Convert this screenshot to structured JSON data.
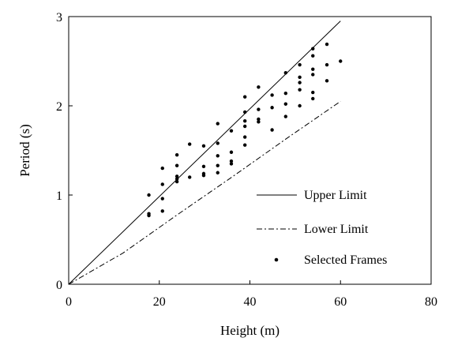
{
  "chart_data": {
    "type": "scatter",
    "xlabel": "Height (m)",
    "ylabel": "Period (s)",
    "xlim": [
      0,
      80
    ],
    "ylim": [
      0,
      3
    ],
    "x_ticks": [
      0,
      20,
      40,
      60,
      80
    ],
    "y_ticks": [
      0,
      1,
      2,
      3
    ],
    "grid": false,
    "legend_position": "bottom-right",
    "series": [
      {
        "name": "Upper Limit",
        "kind": "line",
        "style": "solid",
        "points": [
          [
            0,
            0
          ],
          [
            60,
            2.95
          ]
        ]
      },
      {
        "name": "Lower Limit",
        "kind": "line",
        "style": "dash-dot",
        "points": [
          [
            0,
            0
          ],
          [
            12,
            0.35
          ],
          [
            24,
            0.78
          ],
          [
            36,
            1.2
          ],
          [
            48,
            1.63
          ],
          [
            60,
            2.05
          ]
        ]
      },
      {
        "name": "Selected Frames",
        "kind": "scatter",
        "points": [
          [
            17.7,
            1.0
          ],
          [
            17.7,
            0.79
          ],
          [
            17.7,
            0.77
          ],
          [
            20.7,
            1.3
          ],
          [
            20.7,
            1.12
          ],
          [
            20.7,
            0.96
          ],
          [
            20.7,
            0.82
          ],
          [
            23.9,
            1.45
          ],
          [
            23.9,
            1.33
          ],
          [
            23.9,
            1.21
          ],
          [
            23.9,
            1.18
          ],
          [
            23.9,
            1.15
          ],
          [
            26.7,
            1.57
          ],
          [
            26.7,
            1.2
          ],
          [
            29.8,
            1.55
          ],
          [
            29.8,
            1.32
          ],
          [
            29.8,
            1.24
          ],
          [
            29.8,
            1.22
          ],
          [
            32.9,
            1.8
          ],
          [
            32.9,
            1.58
          ],
          [
            32.9,
            1.44
          ],
          [
            32.9,
            1.33
          ],
          [
            32.9,
            1.25
          ],
          [
            35.9,
            1.72
          ],
          [
            35.9,
            1.48
          ],
          [
            35.9,
            1.38
          ],
          [
            35.9,
            1.35
          ],
          [
            38.9,
            2.1
          ],
          [
            38.9,
            1.93
          ],
          [
            38.9,
            1.83
          ],
          [
            38.9,
            1.77
          ],
          [
            38.9,
            1.65
          ],
          [
            38.9,
            1.56
          ],
          [
            41.9,
            2.21
          ],
          [
            41.9,
            1.96
          ],
          [
            41.9,
            1.85
          ],
          [
            41.9,
            1.82
          ],
          [
            44.9,
            2.12
          ],
          [
            44.9,
            1.98
          ],
          [
            44.9,
            1.73
          ],
          [
            47.9,
            2.37
          ],
          [
            47.9,
            2.14
          ],
          [
            47.9,
            2.02
          ],
          [
            47.9,
            1.88
          ],
          [
            51.0,
            2.46
          ],
          [
            51.0,
            2.32
          ],
          [
            51.0,
            2.26
          ],
          [
            51.0,
            2.18
          ],
          [
            51.0,
            2.0
          ],
          [
            53.9,
            2.64
          ],
          [
            53.9,
            2.56
          ],
          [
            53.9,
            2.41
          ],
          [
            53.9,
            2.35
          ],
          [
            53.9,
            2.15
          ],
          [
            53.9,
            2.08
          ],
          [
            57.0,
            2.69
          ],
          [
            57.0,
            2.46
          ],
          [
            57.0,
            2.28
          ],
          [
            60.0,
            2.5
          ]
        ]
      }
    ]
  }
}
